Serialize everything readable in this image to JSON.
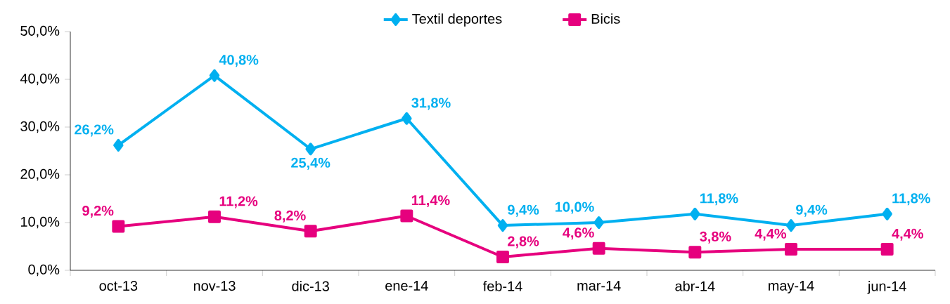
{
  "chart_data": {
    "type": "line",
    "categories": [
      "oct-13",
      "nov-13",
      "dic-13",
      "ene-14",
      "feb-14",
      "mar-14",
      "abr-14",
      "may-14",
      "jun-14"
    ],
    "series": [
      {
        "name": "Textil deportes",
        "color": "#00b0f0",
        "marker": "diamond",
        "values": [
          26.2,
          40.8,
          25.4,
          31.8,
          9.4,
          10.0,
          11.8,
          9.4,
          11.8
        ],
        "value_labels": [
          "26,2%",
          "40,8%",
          "25,4%",
          "31,8%",
          "9,4%",
          "10,0%",
          "11,8%",
          "9,4%",
          "11,8%"
        ]
      },
      {
        "name": "Bicis",
        "color": "#e6007e",
        "marker": "square",
        "values": [
          9.2,
          11.2,
          8.2,
          11.4,
          2.8,
          4.6,
          3.8,
          4.4,
          4.4
        ],
        "value_labels": [
          "9,2%",
          "11,2%",
          "8,2%",
          "11,4%",
          "2,8%",
          "4,6%",
          "3,8%",
          "4,4%",
          "4,4%"
        ]
      }
    ],
    "ylim": [
      0,
      50
    ],
    "yticks": [
      {
        "value": 0,
        "label": "0,0%"
      },
      {
        "value": 10,
        "label": "10,0%"
      },
      {
        "value": 20,
        "label": "20,0%"
      },
      {
        "value": 30,
        "label": "30,0%"
      },
      {
        "value": 40,
        "label": "40,0%"
      },
      {
        "value": 50,
        "label": "50,0%"
      }
    ],
    "legend": "top"
  }
}
